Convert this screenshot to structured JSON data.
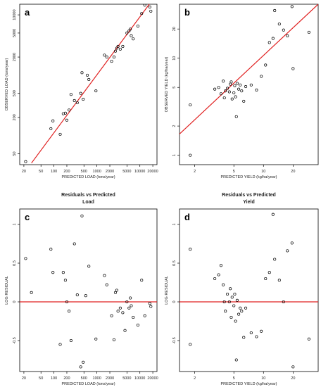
{
  "colors": {
    "fit_line": "#e02020",
    "points": "#000000",
    "frame": "#000000",
    "text": "#222222"
  },
  "chart_data": [
    {
      "panel": "a",
      "type": "scatter",
      "title": "",
      "xlabel": "PREDICTED LOAD (tons/year)",
      "ylabel": "OBSERVED LOAD (tons/year)",
      "log_x": true,
      "log_y": true,
      "xlim": [
        16,
        25000
      ],
      "ylim": [
        33,
        15000
      ],
      "x_ticks": [
        20,
        50,
        100,
        200,
        500,
        1000,
        2000,
        5000,
        10000,
        20000
      ],
      "y_ticks": [
        50,
        200,
        500,
        2000,
        5000,
        10000
      ],
      "fit_line": [
        [
          30,
          35
        ],
        [
          20000,
          18000
        ]
      ],
      "points": [
        [
          22,
          37
        ],
        [
          85,
          130
        ],
        [
          95,
          175
        ],
        [
          140,
          105
        ],
        [
          165,
          230
        ],
        [
          185,
          235
        ],
        [
          200,
          180
        ],
        [
          225,
          265
        ],
        [
          250,
          480
        ],
        [
          300,
          380
        ],
        [
          350,
          350
        ],
        [
          420,
          500
        ],
        [
          450,
          1100
        ],
        [
          480,
          400
        ],
        [
          650,
          850
        ],
        [
          950,
          550
        ],
        [
          1500,
          2150
        ],
        [
          1700,
          2000
        ],
        [
          2200,
          1700
        ],
        [
          2500,
          2000
        ],
        [
          2700,
          2500
        ],
        [
          2900,
          2800
        ],
        [
          3100,
          3000
        ],
        [
          3500,
          2700
        ],
        [
          4000,
          3000
        ],
        [
          5000,
          5000
        ],
        [
          5600,
          5400
        ],
        [
          6000,
          5800
        ],
        [
          6300,
          4500
        ],
        [
          7000,
          4000
        ],
        [
          9000,
          6500
        ],
        [
          11000,
          10500
        ],
        [
          13000,
          14500
        ],
        [
          17000,
          13500
        ],
        [
          18000,
          11500
        ],
        [
          600,
          1000
        ]
      ]
    },
    {
      "panel": "b",
      "type": "scatter",
      "title": "",
      "xlabel": "PREDICTED YIELD (kg/ha/year)",
      "ylabel": "OBSERVED YIELD (kg/ha/year)",
      "log_x": true,
      "log_y": true,
      "xlim": [
        1.4,
        36
      ],
      "ylim": [
        0.8,
        36
      ],
      "x_ticks": [
        2,
        5,
        10,
        20
      ],
      "y_ticks": [
        1,
        2,
        5,
        10,
        20
      ],
      "fit_line": [
        [
          1.35,
          1.6
        ],
        [
          36,
          36
        ]
      ],
      "points": [
        [
          1.8,
          1.0
        ],
        [
          1.8,
          3.3
        ],
        [
          3.2,
          4.8
        ],
        [
          3.5,
          5.0
        ],
        [
          3.7,
          4.3
        ],
        [
          3.9,
          5.8
        ],
        [
          4.0,
          3.9
        ],
        [
          4.1,
          4.6
        ],
        [
          4.3,
          4.9
        ],
        [
          4.5,
          4.5
        ],
        [
          4.6,
          5.4
        ],
        [
          4.7,
          5.7
        ],
        [
          4.8,
          3.8
        ],
        [
          5.0,
          4.4
        ],
        [
          5.1,
          5.2
        ],
        [
          5.2,
          4.0
        ],
        [
          5.3,
          2.5
        ],
        [
          5.4,
          5.5
        ],
        [
          5.6,
          4.8
        ],
        [
          5.8,
          5.3
        ],
        [
          6.0,
          4.6
        ],
        [
          6.3,
          3.6
        ],
        [
          6.6,
          5.1
        ],
        [
          7.5,
          5.3
        ],
        [
          8.5,
          4.7
        ],
        [
          9.5,
          6.5
        ],
        [
          10.5,
          8.5
        ],
        [
          11.5,
          14.5
        ],
        [
          12.5,
          16.0
        ],
        [
          13.0,
          31.0
        ],
        [
          14.5,
          22.5
        ],
        [
          16.0,
          19.5
        ],
        [
          17.5,
          17.0
        ],
        [
          19.5,
          34.0
        ],
        [
          20.0,
          7.8
        ],
        [
          29.0,
          18.5
        ]
      ]
    },
    {
      "panel": "c",
      "type": "scatter",
      "title": "Residuals vs Predicted\nLoad",
      "xlabel": "PREDICTED LOAD (tons/year)",
      "ylabel": "LOG RESIDUAL",
      "log_x": true,
      "log_y": false,
      "xlim": [
        16,
        25000
      ],
      "ylim": [
        -0.9,
        1.2
      ],
      "x_ticks": [
        20,
        50,
        100,
        200,
        500,
        1000,
        2000,
        5000,
        10000,
        20000
      ],
      "y_ticks": [
        -0.5,
        0.0,
        0.5,
        1.0
      ],
      "hline": 0,
      "points": [
        [
          22,
          0.56
        ],
        [
          30,
          0.12
        ],
        [
          85,
          0.68
        ],
        [
          95,
          0.38
        ],
        [
          140,
          -0.55
        ],
        [
          165,
          0.38
        ],
        [
          185,
          0.28
        ],
        [
          200,
          0.0
        ],
        [
          225,
          -0.12
        ],
        [
          250,
          -0.5
        ],
        [
          300,
          0.75
        ],
        [
          350,
          0.09
        ],
        [
          420,
          -0.84
        ],
        [
          450,
          1.11
        ],
        [
          480,
          -0.78
        ],
        [
          550,
          0.08
        ],
        [
          650,
          0.46
        ],
        [
          950,
          -0.48
        ],
        [
          1500,
          0.34
        ],
        [
          1700,
          0.22
        ],
        [
          2200,
          -0.18
        ],
        [
          2500,
          -0.49
        ],
        [
          2700,
          0.12
        ],
        [
          2900,
          0.15
        ],
        [
          3100,
          -0.12
        ],
        [
          3500,
          -0.08
        ],
        [
          4000,
          -0.14
        ],
        [
          4500,
          -0.37
        ],
        [
          5000,
          0.0
        ],
        [
          5600,
          -0.08
        ],
        [
          6000,
          0.05
        ],
        [
          6300,
          -0.05
        ],
        [
          7000,
          -0.2
        ],
        [
          9000,
          -0.3
        ],
        [
          11000,
          0.28
        ],
        [
          13000,
          -0.18
        ],
        [
          17000,
          -0.02
        ],
        [
          18000,
          -0.06
        ]
      ]
    },
    {
      "panel": "d",
      "type": "scatter",
      "title": "Residuals vs Predicted\nYield",
      "xlabel": "PREDICTED YIELD (kg/ha/year)",
      "ylabel": "LOG RESIDUAL",
      "log_x": true,
      "log_y": false,
      "xlim": [
        1.4,
        36
      ],
      "ylim": [
        -0.9,
        1.2
      ],
      "x_ticks": [
        2,
        5,
        10,
        20
      ],
      "y_ticks": [
        -0.5,
        0.0,
        0.5,
        1.0
      ],
      "hline": 0,
      "points": [
        [
          1.8,
          0.68
        ],
        [
          1.8,
          -0.55
        ],
        [
          3.2,
          0.3
        ],
        [
          3.5,
          0.35
        ],
        [
          3.7,
          0.47
        ],
        [
          3.9,
          0.22
        ],
        [
          4.0,
          0.0
        ],
        [
          4.1,
          -0.12
        ],
        [
          4.3,
          0.1
        ],
        [
          4.5,
          0.0
        ],
        [
          4.6,
          0.17
        ],
        [
          4.7,
          -0.2
        ],
        [
          4.8,
          0.06
        ],
        [
          5.0,
          -0.05
        ],
        [
          5.1,
          0.1
        ],
        [
          5.2,
          -0.25
        ],
        [
          5.3,
          -0.75
        ],
        [
          5.4,
          0.02
        ],
        [
          5.6,
          -0.16
        ],
        [
          5.8,
          -0.08
        ],
        [
          6.0,
          -0.12
        ],
        [
          6.3,
          -0.46
        ],
        [
          6.6,
          -0.08
        ],
        [
          7.5,
          -0.4
        ],
        [
          8.5,
          -0.45
        ],
        [
          9.5,
          -0.38
        ],
        [
          10.5,
          0.3
        ],
        [
          11.5,
          0.38
        ],
        [
          12.5,
          1.13
        ],
        [
          13.0,
          0.55
        ],
        [
          14.5,
          0.28
        ],
        [
          16.0,
          0.0
        ],
        [
          17.5,
          0.66
        ],
        [
          19.5,
          0.76
        ],
        [
          20.0,
          -0.84
        ],
        [
          29.0,
          -0.48
        ]
      ]
    }
  ]
}
